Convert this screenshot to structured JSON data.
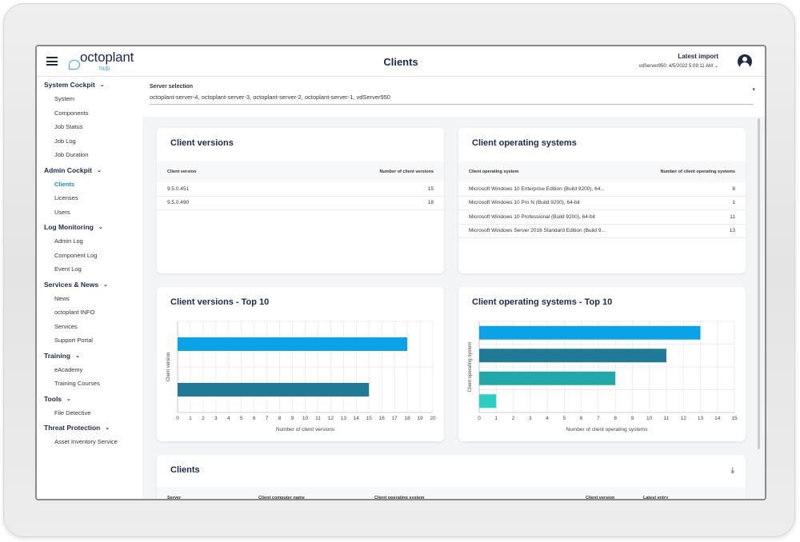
{
  "app": {
    "title": "Clients",
    "logo_text": "octoplant",
    "logo_sub": "hub",
    "latest_import_label": "Latest import",
    "latest_import_value": "vdServer950: 4/5/2022 5:09:11 AM"
  },
  "sidebar": {
    "sections": [
      {
        "label": "System Cockpit",
        "items": [
          "System",
          "Components",
          "Job Status",
          "Job Log",
          "Job Duration"
        ]
      },
      {
        "label": "Admin Cockpit",
        "items": [
          "Clients",
          "Licenses",
          "Users"
        ]
      },
      {
        "label": "Log Monitoring",
        "items": [
          "Admin Log",
          "Component Log",
          "Event Log"
        ]
      },
      {
        "label": "Services & News",
        "items": [
          "News",
          "octoplant INFO",
          "Services",
          "Support Portal"
        ]
      },
      {
        "label": "Training",
        "items": [
          "eAcademy",
          "Training Courses"
        ]
      },
      {
        "label": "Tools",
        "items": [
          "File Detective"
        ]
      },
      {
        "label": "Threat Protection",
        "items": [
          "Asset Inventory Service"
        ]
      }
    ],
    "active_item": "Clients"
  },
  "server_selection": {
    "label": "Server selection",
    "value": "octoplant-server-4, octoplant-server-3, octoplant-server-2, octoplant-server-1, vdServer950"
  },
  "client_versions": {
    "title": "Client versions",
    "columns": [
      "Client version",
      "Number of client versions"
    ],
    "rows": [
      [
        "9.5.0.451",
        "15"
      ],
      [
        "9.5.0.490",
        "18"
      ]
    ]
  },
  "client_os": {
    "title": "Client operating systems",
    "columns": [
      "Client operating system",
      "Number of client operating systems"
    ],
    "rows": [
      [
        "Microsoft Windows 10 Enterprise Edition (Build 9200), 64...",
        "8"
      ],
      [
        "Microsoft Windows 10 Pro N (Build 9200), 64-bit",
        "1"
      ],
      [
        "Microsoft Windows 10 Professional (Build 9200), 64-bit",
        "11"
      ],
      [
        "Microsoft Windows Server 2016 Standard Edition (Build 9...",
        "13"
      ]
    ]
  },
  "chart_versions_top10": {
    "title": "Client versions - Top 10"
  },
  "chart_os_top10": {
    "title": "Client operating systems - Top 10"
  },
  "chart_data": [
    {
      "type": "bar",
      "orientation": "horizontal",
      "title": "Client versions - Top 10",
      "xlabel": "Number of client versions",
      "ylabel": "Client version",
      "values": [
        18,
        15
      ],
      "xlim": [
        0,
        20
      ],
      "xticks": [
        0,
        1,
        2,
        3,
        4,
        5,
        6,
        7,
        8,
        9,
        10,
        11,
        12,
        13,
        14,
        15,
        16,
        17,
        18,
        19,
        20
      ],
      "colors": [
        "#0aa3e8",
        "#1f7a97"
      ],
      "grid": true
    },
    {
      "type": "bar",
      "orientation": "horizontal",
      "title": "Client operating systems - Top 10",
      "xlabel": "Number of client operating systems",
      "ylabel": "Client operating system",
      "values": [
        13,
        11,
        8,
        1
      ],
      "xlim": [
        0,
        15
      ],
      "xticks": [
        0,
        1,
        2,
        3,
        4,
        5,
        6,
        7,
        8,
        9,
        10,
        11,
        12,
        13,
        14,
        15
      ],
      "colors": [
        "#0aa3e8",
        "#1f7a97",
        "#22a8a8",
        "#29cfc0"
      ],
      "grid": true
    }
  ],
  "clients_table": {
    "title": "Clients",
    "columns": [
      "Server",
      "Client computer name",
      "Client operating system",
      "Client version",
      "Latest entry"
    ]
  }
}
